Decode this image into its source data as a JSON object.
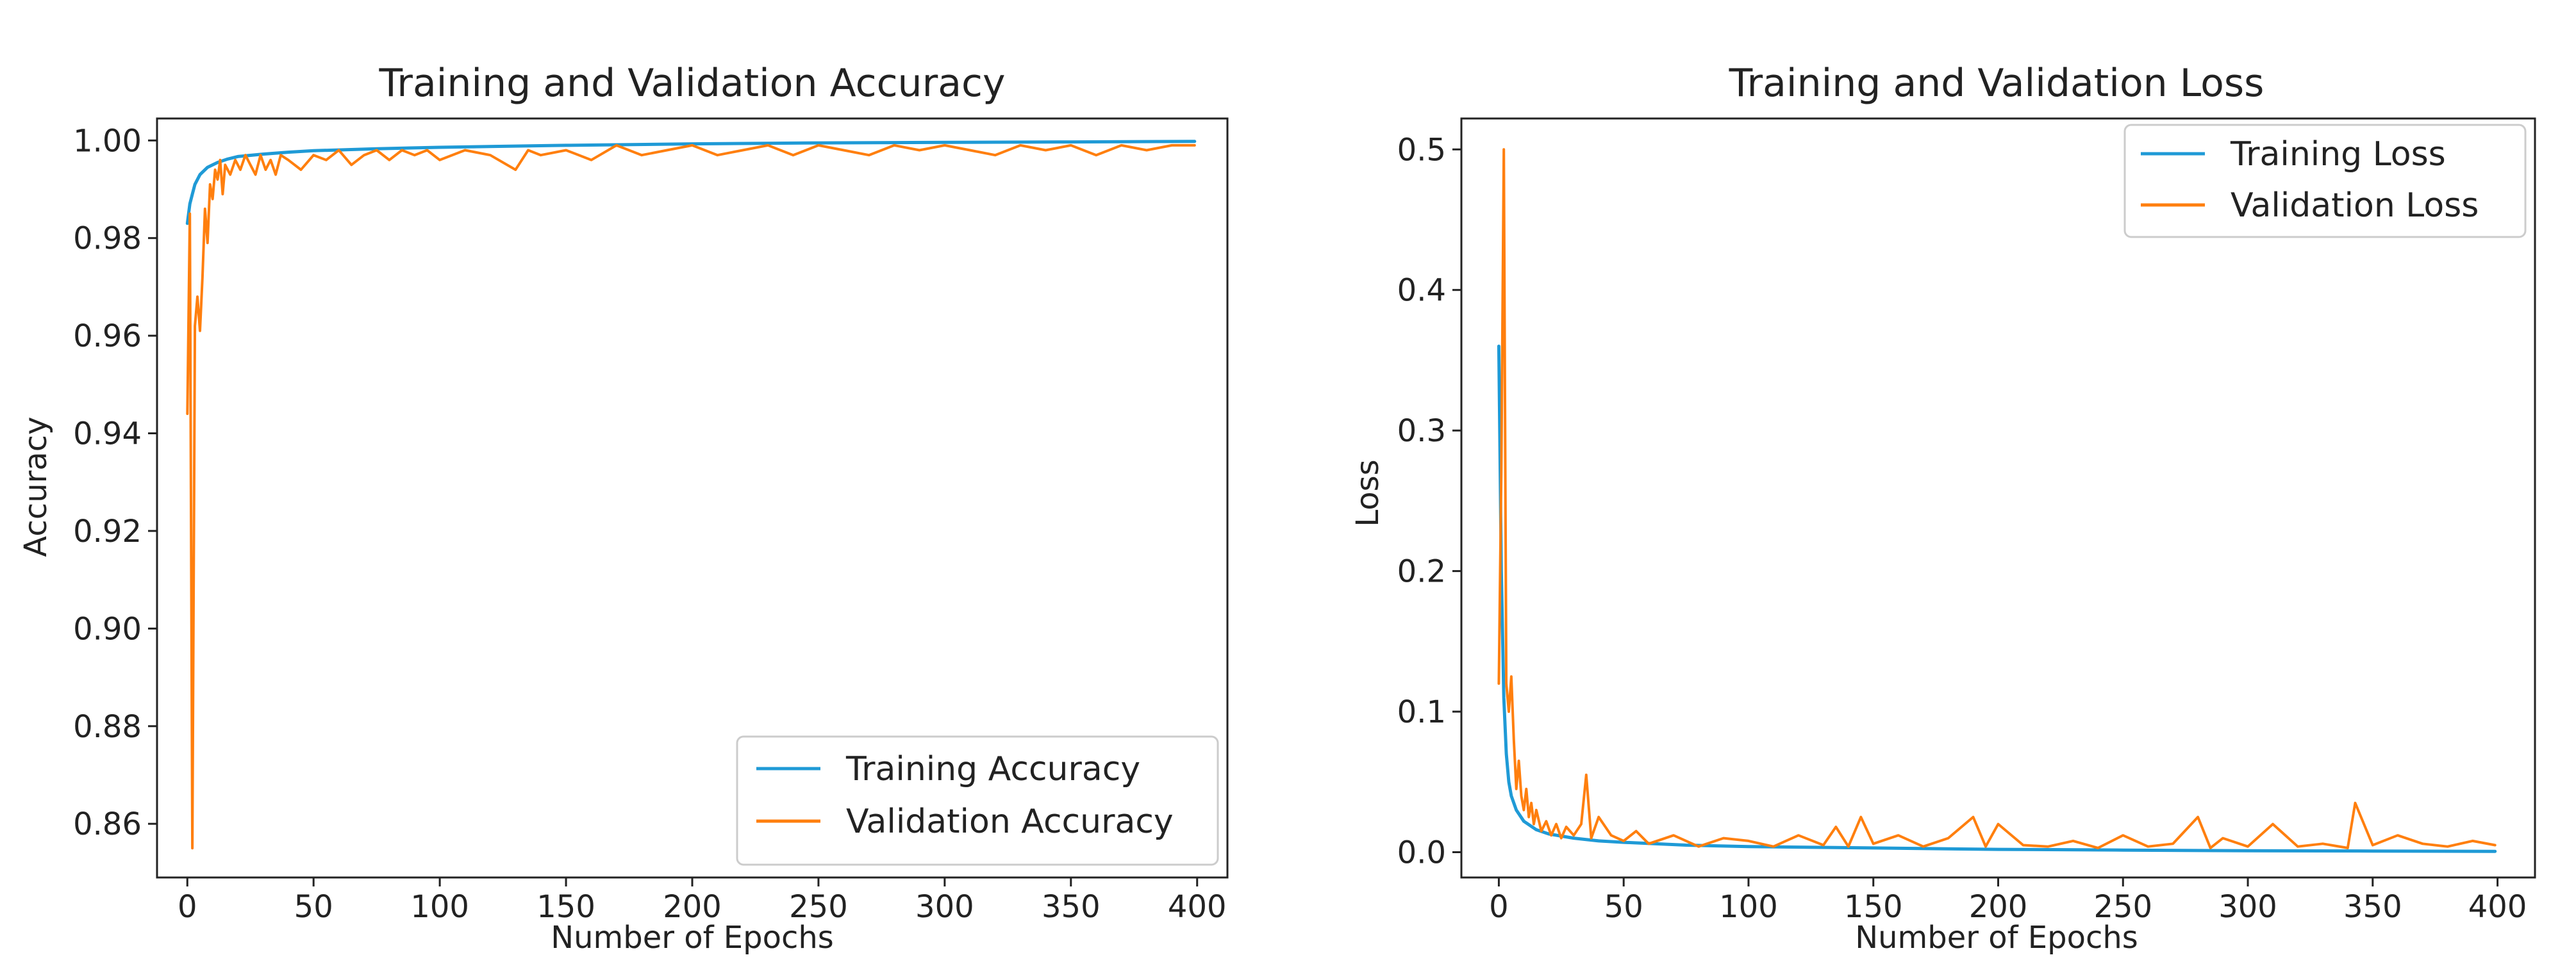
{
  "colors": {
    "training": "#1f9ad6",
    "validation": "#ff7f0e",
    "axis": "#222222",
    "legend_border": "#cccccc"
  },
  "chart_data": [
    {
      "type": "line",
      "title": "Training and Validation Accuracy",
      "xlabel": "Number of Epochs",
      "ylabel": "Accuracy",
      "xlim": [
        -12,
        412
      ],
      "ylim": [
        0.849,
        1.0045
      ],
      "xticks": [
        0,
        50,
        100,
        150,
        200,
        250,
        300,
        350,
        400
      ],
      "xtick_labels": [
        "0",
        "50",
        "100",
        "150",
        "200",
        "250",
        "300",
        "350",
        "400"
      ],
      "yticks": [
        0.86,
        0.88,
        0.9,
        0.92,
        0.94,
        0.96,
        0.98,
        1.0
      ],
      "ytick_labels": [
        "0.86",
        "0.88",
        "0.90",
        "0.92",
        "0.94",
        "0.96",
        "0.98",
        "1.00"
      ],
      "grid": false,
      "legend_position": "lower-right",
      "series": [
        {
          "name": "Training Accuracy",
          "x": [
            0,
            1,
            2,
            3,
            5,
            8,
            12,
            16,
            20,
            30,
            40,
            50,
            75,
            100,
            150,
            200,
            250,
            300,
            350,
            399
          ],
          "y": [
            0.983,
            0.987,
            0.989,
            0.991,
            0.993,
            0.9945,
            0.9955,
            0.9962,
            0.9967,
            0.9972,
            0.9976,
            0.9979,
            0.9983,
            0.9986,
            0.999,
            0.9993,
            0.9995,
            0.9996,
            0.9997,
            0.9998
          ]
        },
        {
          "name": "Validation Accuracy",
          "x": [
            0,
            1,
            2,
            3,
            4,
            5,
            6,
            7,
            8,
            9,
            10,
            11,
            12,
            13,
            14,
            15,
            17,
            19,
            21,
            23,
            25,
            27,
            29,
            31,
            33,
            35,
            37,
            40,
            45,
            50,
            55,
            60,
            65,
            70,
            75,
            80,
            85,
            90,
            95,
            100,
            110,
            120,
            130,
            135,
            140,
            150,
            160,
            170,
            180,
            190,
            200,
            210,
            220,
            230,
            240,
            250,
            260,
            270,
            280,
            290,
            300,
            310,
            320,
            330,
            340,
            350,
            360,
            370,
            380,
            390,
            399
          ],
          "y": [
            0.944,
            0.985,
            0.855,
            0.962,
            0.968,
            0.961,
            0.972,
            0.986,
            0.979,
            0.991,
            0.988,
            0.994,
            0.992,
            0.996,
            0.989,
            0.995,
            0.993,
            0.996,
            0.994,
            0.997,
            0.995,
            0.993,
            0.997,
            0.994,
            0.996,
            0.993,
            0.997,
            0.996,
            0.994,
            0.997,
            0.996,
            0.998,
            0.995,
            0.997,
            0.998,
            0.996,
            0.998,
            0.997,
            0.998,
            0.996,
            0.998,
            0.997,
            0.994,
            0.998,
            0.997,
            0.998,
            0.996,
            0.999,
            0.997,
            0.998,
            0.999,
            0.997,
            0.998,
            0.999,
            0.997,
            0.999,
            0.998,
            0.997,
            0.999,
            0.998,
            0.999,
            0.998,
            0.997,
            0.999,
            0.998,
            0.999,
            0.997,
            0.999,
            0.998,
            0.999,
            0.999
          ]
        }
      ]
    },
    {
      "type": "line",
      "title": "Training and Validation Loss",
      "xlabel": "Number of Epochs",
      "ylabel": "Loss",
      "xlim": [
        -15,
        415
      ],
      "ylim": [
        -0.018,
        0.522
      ],
      "xticks": [
        0,
        50,
        100,
        150,
        200,
        250,
        300,
        350,
        400
      ],
      "xtick_labels": [
        "0",
        "50",
        "100",
        "150",
        "200",
        "250",
        "300",
        "350",
        "400"
      ],
      "yticks": [
        0.0,
        0.1,
        0.2,
        0.3,
        0.4,
        0.5
      ],
      "ytick_labels": [
        "0.0",
        "0.1",
        "0.2",
        "0.3",
        "0.4",
        "0.5"
      ],
      "grid": false,
      "legend_position": "upper-right",
      "series": [
        {
          "name": "Training Loss",
          "x": [
            0,
            1,
            2,
            3,
            4,
            5,
            7,
            10,
            15,
            20,
            30,
            40,
            50,
            75,
            100,
            150,
            200,
            250,
            300,
            350,
            399
          ],
          "y": [
            0.36,
            0.2,
            0.11,
            0.07,
            0.05,
            0.04,
            0.03,
            0.022,
            0.016,
            0.013,
            0.01,
            0.008,
            0.007,
            0.005,
            0.004,
            0.003,
            0.002,
            0.0015,
            0.001,
            0.0008,
            0.0006
          ]
        },
        {
          "name": "Validation Loss",
          "x": [
            0,
            1,
            2,
            3,
            4,
            5,
            6,
            7,
            8,
            9,
            10,
            11,
            12,
            13,
            14,
            15,
            17,
            19,
            21,
            23,
            25,
            27,
            30,
            33,
            35,
            37,
            40,
            45,
            50,
            55,
            60,
            70,
            80,
            90,
            100,
            110,
            120,
            130,
            135,
            140,
            145,
            150,
            160,
            170,
            180,
            190,
            195,
            200,
            210,
            220,
            230,
            240,
            250,
            260,
            270,
            280,
            285,
            290,
            300,
            310,
            320,
            330,
            340,
            343,
            350,
            360,
            370,
            380,
            390,
            399
          ],
          "y": [
            0.12,
            0.27,
            0.5,
            0.12,
            0.1,
            0.125,
            0.08,
            0.045,
            0.065,
            0.04,
            0.03,
            0.045,
            0.025,
            0.035,
            0.02,
            0.03,
            0.015,
            0.022,
            0.012,
            0.02,
            0.01,
            0.018,
            0.012,
            0.02,
            0.055,
            0.01,
            0.025,
            0.012,
            0.008,
            0.015,
            0.006,
            0.012,
            0.004,
            0.01,
            0.008,
            0.004,
            0.012,
            0.005,
            0.018,
            0.004,
            0.025,
            0.006,
            0.012,
            0.004,
            0.01,
            0.025,
            0.004,
            0.02,
            0.005,
            0.004,
            0.008,
            0.003,
            0.012,
            0.004,
            0.006,
            0.025,
            0.003,
            0.01,
            0.004,
            0.02,
            0.004,
            0.006,
            0.003,
            0.035,
            0.005,
            0.012,
            0.006,
            0.004,
            0.008,
            0.005
          ]
        }
      ]
    }
  ]
}
